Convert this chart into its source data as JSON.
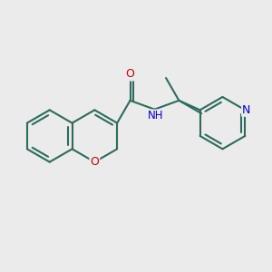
{
  "background_color": "#ebebeb",
  "bond_color": "#2d6b5e",
  "O_color": "#cc0000",
  "N_color": "#0000cc",
  "line_width": 1.5,
  "figsize": [
    3.0,
    3.0
  ],
  "dpi": 100,
  "xlim": [
    -1.85,
    1.95
  ],
  "ylim": [
    -0.95,
    0.85
  ]
}
